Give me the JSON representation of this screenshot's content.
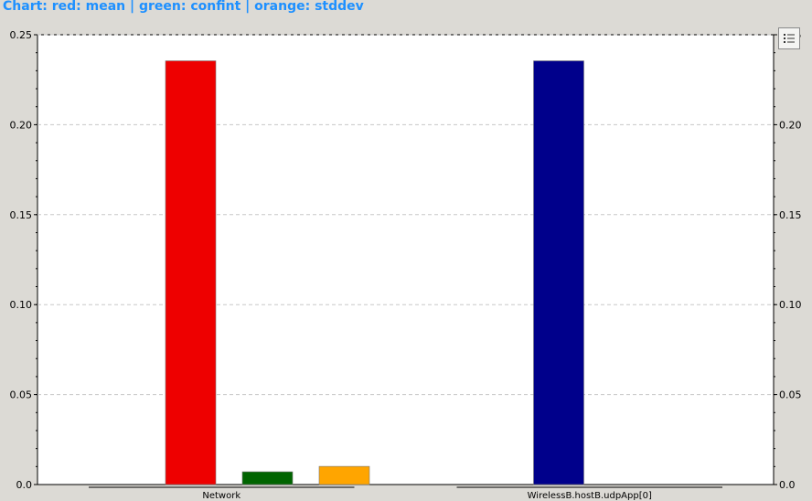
{
  "header": {
    "title": "Chart: red: mean | green: confint | orange: stddev"
  },
  "toolbar": {
    "legend_icon": "list-icon"
  },
  "colors": {
    "background": "#dcdad5",
    "plot_background": "#ffffff",
    "title": "#1e90ff",
    "grid": "#c8c8c8"
  },
  "chart_data": {
    "type": "bar",
    "title": "Chart: red: mean | green: confint | orange: stddev",
    "xlabel": "",
    "ylabel": "",
    "ylim": [
      0,
      0.25
    ],
    "yticks": [
      "0.0",
      "0.05",
      "0.10",
      "0.15",
      "0.20",
      "0.25"
    ],
    "grid": true,
    "categories": [
      "Network",
      "WirelessB.hostB.udpApp[0]"
    ],
    "series": [
      {
        "color": "#ee0000",
        "values": [
          0.2355,
          null
        ]
      },
      {
        "color": "#006400",
        "values": [
          0.0071,
          null
        ]
      },
      {
        "color": "#ffa500",
        "values": [
          0.0101,
          null
        ]
      },
      {
        "color": "#00008b",
        "values": [
          null,
          0.2355
        ]
      }
    ]
  }
}
